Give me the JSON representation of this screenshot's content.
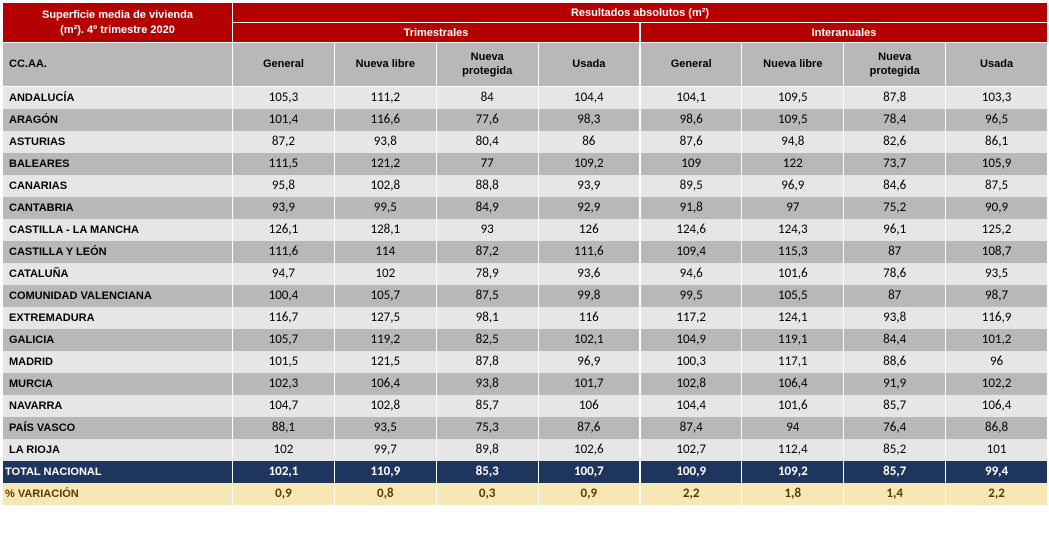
{
  "header": {
    "title_line1": "Superficie media de vivienda",
    "title_line2": "(m²).  4º trimestre 2020",
    "results_label": "Resultados absolutos (m²)",
    "group1": "Trimestrales",
    "group2": "Interanuales",
    "rowhead": "CC.AA.",
    "cols": [
      "General",
      "Nueva libre",
      "Nueva protegida",
      "Usada",
      "General",
      "Nueva libre",
      "Nueva protegida",
      "Usada"
    ]
  },
  "rows": [
    {
      "name": "ANDALUCÍA",
      "v": [
        "105,3",
        "111,2",
        "84",
        "104,4",
        "104,1",
        "109,5",
        "87,8",
        "103,3"
      ]
    },
    {
      "name": "ARAGÓN",
      "v": [
        "101,4",
        "116,6",
        "77,6",
        "98,3",
        "98,6",
        "109,5",
        "78,4",
        "96,5"
      ]
    },
    {
      "name": "ASTURIAS",
      "v": [
        "87,2",
        "93,8",
        "80,4",
        "86",
        "87,6",
        "94,8",
        "82,6",
        "86,1"
      ]
    },
    {
      "name": "BALEARES",
      "v": [
        "111,5",
        "121,2",
        "77",
        "109,2",
        "109",
        "122",
        "73,7",
        "105,9"
      ]
    },
    {
      "name": "CANARIAS",
      "v": [
        "95,8",
        "102,8",
        "88,8",
        "93,9",
        "89,5",
        "96,9",
        "84,6",
        "87,5"
      ]
    },
    {
      "name": "CANTABRIA",
      "v": [
        "93,9",
        "99,5",
        "84,9",
        "92,9",
        "91,8",
        "97",
        "75,2",
        "90,9"
      ]
    },
    {
      "name": "CASTILLA - LA MANCHA",
      "v": [
        "126,1",
        "128,1",
        "93",
        "126",
        "124,6",
        "124,3",
        "96,1",
        "125,2"
      ]
    },
    {
      "name": "CASTILLA Y LEÓN",
      "v": [
        "111,6",
        "114",
        "87,2",
        "111,6",
        "109,4",
        "115,3",
        "87",
        "108,7"
      ]
    },
    {
      "name": "CATALUÑA",
      "v": [
        "94,7",
        "102",
        "78,9",
        "93,6",
        "94,6",
        "101,6",
        "78,6",
        "93,5"
      ]
    },
    {
      "name": "COMUNIDAD VALENCIANA",
      "v": [
        "100,4",
        "105,7",
        "87,5",
        "99,8",
        "99,5",
        "105,5",
        "87",
        "98,7"
      ]
    },
    {
      "name": "EXTREMADURA",
      "v": [
        "116,7",
        "127,5",
        "98,1",
        "116",
        "117,2",
        "124,1",
        "93,8",
        "116,9"
      ]
    },
    {
      "name": "GALICIA",
      "v": [
        "105,7",
        "119,2",
        "82,5",
        "102,1",
        "104,9",
        "119,1",
        "84,4",
        "101,2"
      ]
    },
    {
      "name": "MADRID",
      "v": [
        "101,5",
        "121,5",
        "87,8",
        "96,9",
        "100,3",
        "117,1",
        "88,6",
        "96"
      ]
    },
    {
      "name": "MURCIA",
      "v": [
        "102,3",
        "106,4",
        "93,8",
        "101,7",
        "102,8",
        "106,4",
        "91,9",
        "102,2"
      ]
    },
    {
      "name": "NAVARRA",
      "v": [
        "104,7",
        "102,8",
        "85,7",
        "106",
        "104,4",
        "101,6",
        "85,7",
        "106,4"
      ]
    },
    {
      "name": "PAÍS VASCO",
      "v": [
        "88,1",
        "93,5",
        "75,3",
        "87,6",
        "87,4",
        "94",
        "76,4",
        "86,8"
      ]
    },
    {
      "name": "LA RIOJA",
      "v": [
        "102",
        "99,7",
        "89,8",
        "102,6",
        "102,7",
        "112,4",
        "85,2",
        "101"
      ]
    }
  ],
  "total": {
    "name": "TOTAL NACIONAL",
    "v": [
      "102,1",
      "110,9",
      "85,3",
      "100,7",
      "100,9",
      "109,2",
      "85,7",
      "99,4"
    ]
  },
  "variation": {
    "name": "% VARIACIÓN",
    "v": [
      "0,9",
      "0,8",
      "0,3",
      "0,9",
      "2,2",
      "1,8",
      "1,4",
      "2,2"
    ]
  }
}
